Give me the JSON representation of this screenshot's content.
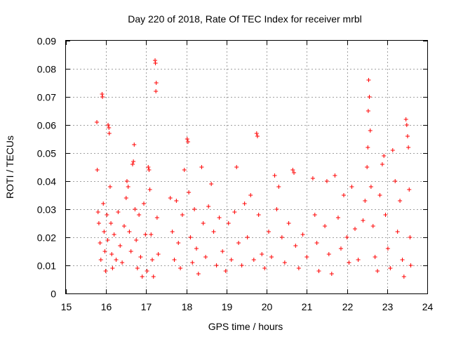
{
  "chart_data": {
    "type": "scatter",
    "title": "Day 220 of 2018, Rate Of TEC Index for receiver mrbl",
    "xlabel": "GPS time / hours",
    "ylabel": "ROTI / TECUs",
    "xlim": [
      15,
      24
    ],
    "ylim": [
      0,
      0.09
    ],
    "x_ticks": [
      "15",
      "16",
      "17",
      "18",
      "19",
      "20",
      "21",
      "22",
      "23",
      "24"
    ],
    "y_ticks": [
      "0",
      "0.01",
      "0.02",
      "0.03",
      "0.04",
      "0.05",
      "0.06",
      "0.07",
      "0.08",
      "0.09"
    ],
    "grid": true,
    "marker": "+",
    "marker_color": "#ff0000",
    "series": [
      {
        "name": "ROTI",
        "points": [
          [
            15.77,
            0.061
          ],
          [
            15.78,
            0.044
          ],
          [
            15.8,
            0.029
          ],
          [
            15.82,
            0.025
          ],
          [
            15.85,
            0.018
          ],
          [
            15.87,
            0.012
          ],
          [
            15.9,
            0.071
          ],
          [
            15.91,
            0.07
          ],
          [
            15.93,
            0.032
          ],
          [
            15.95,
            0.022
          ],
          [
            15.97,
            0.015
          ],
          [
            15.99,
            0.008
          ],
          [
            16.02,
            0.028
          ],
          [
            16.04,
            0.019
          ],
          [
            16.05,
            0.06
          ],
          [
            16.07,
            0.059
          ],
          [
            16.08,
            0.057
          ],
          [
            16.1,
            0.038
          ],
          [
            16.12,
            0.025
          ],
          [
            16.14,
            0.014
          ],
          [
            16.16,
            0.009
          ],
          [
            16.2,
            0.021
          ],
          [
            16.25,
            0.012
          ],
          [
            16.3,
            0.029
          ],
          [
            16.35,
            0.017
          ],
          [
            16.4,
            0.011
          ],
          [
            16.45,
            0.024
          ],
          [
            16.5,
            0.034
          ],
          [
            16.52,
            0.04
          ],
          [
            16.55,
            0.038
          ],
          [
            16.58,
            0.022
          ],
          [
            16.62,
            0.015
          ],
          [
            16.66,
            0.046
          ],
          [
            16.68,
            0.047
          ],
          [
            16.7,
            0.053
          ],
          [
            16.72,
            0.03
          ],
          [
            16.75,
            0.019
          ],
          [
            16.78,
            0.009
          ],
          [
            16.82,
            0.028
          ],
          [
            16.86,
            0.013
          ],
          [
            16.9,
            0.006
          ],
          [
            16.94,
            0.032
          ],
          [
            16.98,
            0.021
          ],
          [
            17.02,
            0.008
          ],
          [
            17.05,
            0.045
          ],
          [
            17.07,
            0.044
          ],
          [
            17.09,
            0.037
          ],
          [
            17.12,
            0.021
          ],
          [
            17.15,
            0.012
          ],
          [
            17.18,
            0.006
          ],
          [
            17.22,
            0.083
          ],
          [
            17.23,
            0.082
          ],
          [
            17.25,
            0.075
          ],
          [
            17.24,
            0.072
          ],
          [
            17.27,
            0.027
          ],
          [
            17.3,
            0.014
          ],
          [
            17.6,
            0.034
          ],
          [
            17.65,
            0.022
          ],
          [
            17.7,
            0.012
          ],
          [
            17.75,
            0.033
          ],
          [
            17.8,
            0.018
          ],
          [
            17.85,
            0.009
          ],
          [
            17.9,
            0.028
          ],
          [
            17.95,
            0.044
          ],
          [
            18.02,
            0.055
          ],
          [
            18.04,
            0.054
          ],
          [
            18.06,
            0.036
          ],
          [
            18.1,
            0.02
          ],
          [
            18.15,
            0.011
          ],
          [
            18.2,
            0.03
          ],
          [
            18.25,
            0.016
          ],
          [
            18.3,
            0.007
          ],
          [
            18.38,
            0.045
          ],
          [
            18.42,
            0.025
          ],
          [
            18.48,
            0.013
          ],
          [
            18.55,
            0.031
          ],
          [
            18.62,
            0.039
          ],
          [
            18.68,
            0.022
          ],
          [
            18.75,
            0.01
          ],
          [
            18.82,
            0.027
          ],
          [
            18.9,
            0.015
          ],
          [
            18.98,
            0.008
          ],
          [
            19.05,
            0.025
          ],
          [
            19.12,
            0.012
          ],
          [
            19.2,
            0.029
          ],
          [
            19.25,
            0.045
          ],
          [
            19.3,
            0.018
          ],
          [
            19.38,
            0.01
          ],
          [
            19.45,
            0.032
          ],
          [
            19.52,
            0.02
          ],
          [
            19.6,
            0.035
          ],
          [
            19.68,
            0.012
          ],
          [
            19.75,
            0.057
          ],
          [
            19.77,
            0.056
          ],
          [
            19.8,
            0.028
          ],
          [
            19.88,
            0.014
          ],
          [
            19.95,
            0.009
          ],
          [
            20.05,
            0.022
          ],
          [
            20.12,
            0.013
          ],
          [
            20.2,
            0.042
          ],
          [
            20.25,
            0.03
          ],
          [
            20.3,
            0.038
          ],
          [
            20.38,
            0.02
          ],
          [
            20.45,
            0.011
          ],
          [
            20.55,
            0.025
          ],
          [
            20.65,
            0.044
          ],
          [
            20.68,
            0.043
          ],
          [
            20.72,
            0.017
          ],
          [
            20.8,
            0.009
          ],
          [
            20.9,
            0.021
          ],
          [
            21.0,
            0.013
          ],
          [
            21.15,
            0.041
          ],
          [
            21.2,
            0.028
          ],
          [
            21.25,
            0.018
          ],
          [
            21.3,
            0.008
          ],
          [
            21.45,
            0.024
          ],
          [
            21.5,
            0.04
          ],
          [
            21.55,
            0.014
          ],
          [
            21.62,
            0.007
          ],
          [
            21.7,
            0.042
          ],
          [
            21.78,
            0.027
          ],
          [
            21.85,
            0.016
          ],
          [
            21.92,
            0.035
          ],
          [
            22.0,
            0.02
          ],
          [
            22.05,
            0.011
          ],
          [
            22.12,
            0.038
          ],
          [
            22.2,
            0.023
          ],
          [
            22.28,
            0.012
          ],
          [
            22.4,
            0.026
          ],
          [
            22.45,
            0.033
          ],
          [
            22.5,
            0.045
          ],
          [
            22.52,
            0.052
          ],
          [
            22.53,
            0.065
          ],
          [
            22.54,
            0.076
          ],
          [
            22.56,
            0.07
          ],
          [
            22.58,
            0.058
          ],
          [
            22.6,
            0.038
          ],
          [
            22.65,
            0.024
          ],
          [
            22.7,
            0.013
          ],
          [
            22.76,
            0.008
          ],
          [
            22.82,
            0.035
          ],
          [
            22.88,
            0.046
          ],
          [
            22.92,
            0.049
          ],
          [
            22.96,
            0.028
          ],
          [
            23.02,
            0.016
          ],
          [
            23.08,
            0.009
          ],
          [
            23.14,
            0.051
          ],
          [
            23.2,
            0.04
          ],
          [
            23.26,
            0.022
          ],
          [
            23.32,
            0.033
          ],
          [
            23.38,
            0.012
          ],
          [
            23.42,
            0.006
          ],
          [
            23.47,
            0.062
          ],
          [
            23.49,
            0.06
          ],
          [
            23.51,
            0.056
          ],
          [
            23.53,
            0.052
          ],
          [
            23.55,
            0.037
          ],
          [
            23.57,
            0.02
          ],
          [
            23.59,
            0.01
          ]
        ]
      }
    ]
  }
}
